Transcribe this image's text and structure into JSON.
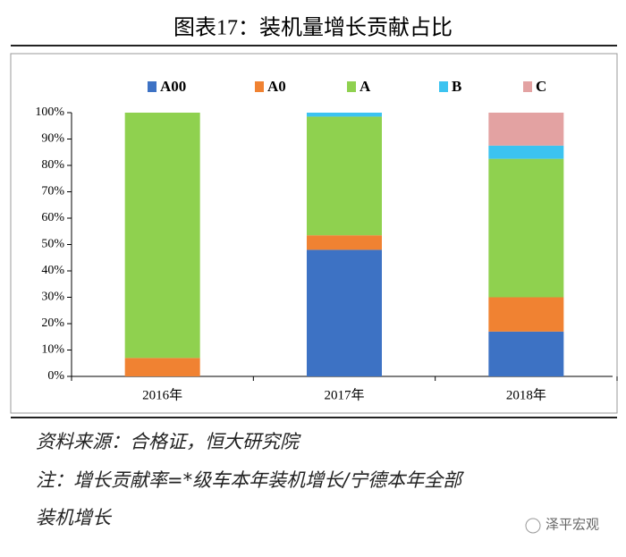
{
  "chart_data": {
    "type": "stacked_bar",
    "title": "图表17：装机量增长贡献占比",
    "categories": [
      "2016年",
      "2017年",
      "2018年"
    ],
    "series": [
      {
        "name": "A00",
        "color": "#3d72c4",
        "values": [
          0,
          48,
          17
        ]
      },
      {
        "name": "A0",
        "color": "#f08232",
        "values": [
          7,
          5.5,
          13
        ]
      },
      {
        "name": "A",
        "color": "#8fd14f",
        "values": [
          93,
          45,
          52.5
        ]
      },
      {
        "name": "B",
        "color": "#3cc3f0",
        "values": [
          0,
          1.5,
          5
        ]
      },
      {
        "name": "C",
        "color": "#e3a2a2",
        "values": [
          0,
          0,
          12.5
        ]
      }
    ],
    "ylim": [
      0,
      100
    ],
    "yticks": [
      {
        "value": 0,
        "label": "0%"
      },
      {
        "value": 10,
        "label": "10%"
      },
      {
        "value": 20,
        "label": "20%"
      },
      {
        "value": 30,
        "label": "30%"
      },
      {
        "value": 40,
        "label": "40%"
      },
      {
        "value": 50,
        "label": "50%"
      },
      {
        "value": 60,
        "label": "60%"
      },
      {
        "value": 70,
        "label": "70%"
      },
      {
        "value": 80,
        "label": "80%"
      },
      {
        "value": 90,
        "label": "90%"
      },
      {
        "value": 100,
        "label": "100%"
      }
    ],
    "legend_position": "top"
  },
  "source": "资料来源：合格证，恒大研究院",
  "note": [
    "注：增长贡献率=*级车本年装机增长/宁德本年全部",
    "装机增长"
  ],
  "watermark": "泽平宏观"
}
